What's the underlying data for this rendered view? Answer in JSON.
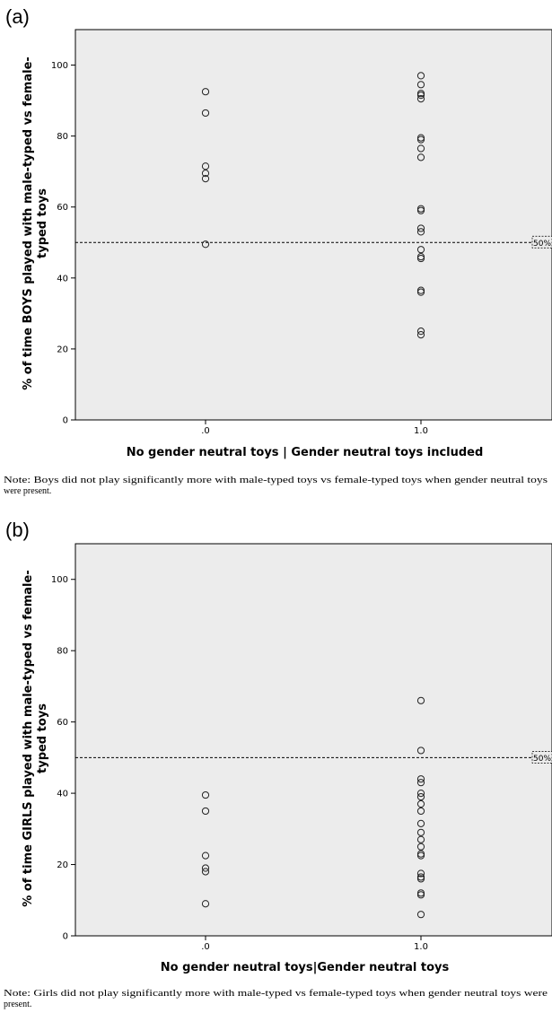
{
  "chart_data": [
    {
      "type": "scatter",
      "panel_label": "(a)",
      "xlabel": "No gender neutral toys | Gender neutral toys included",
      "ylabel_lines": [
        "% of time BOYS played with male-typed vs female-",
        "typed toys"
      ],
      "x_ticks": [
        ".0",
        "1.0"
      ],
      "y_ticks": [
        0,
        20,
        40,
        60,
        80,
        100
      ],
      "ylim": [
        0,
        110
      ],
      "reference_line": {
        "y": 50,
        "label": "50%"
      },
      "series": [
        {
          "x": 0,
          "values": [
            92.5,
            86.5,
            71.5,
            69.5,
            68,
            49.5
          ]
        },
        {
          "x": 1,
          "values": [
            97,
            94.5,
            92,
            91.5,
            90.5,
            79.5,
            79,
            76.5,
            74,
            59.5,
            59,
            54,
            53,
            48,
            46,
            45.5,
            36.5,
            36,
            25,
            24
          ]
        }
      ],
      "grid": false,
      "note_lines": [
        "Note: Boys did not play significantly more with male-typed toys vs female-typed toys when gender neutral toys",
        "were present."
      ]
    },
    {
      "type": "scatter",
      "panel_label": "(b)",
      "xlabel": "No gender neutral toys|Gender neutral toys",
      "ylabel_lines": [
        "% of time GIRLS played with male-typed vs female-",
        "typed toys"
      ],
      "x_ticks": [
        ".0",
        "1.0"
      ],
      "y_ticks": [
        0,
        20,
        40,
        60,
        80,
        100
      ],
      "ylim": [
        0,
        110
      ],
      "reference_line": {
        "y": 50,
        "label": "50%"
      },
      "series": [
        {
          "x": 0,
          "values": [
            39.5,
            35,
            22.5,
            19,
            18,
            9
          ]
        },
        {
          "x": 1,
          "values": [
            66,
            52,
            44,
            43,
            40,
            39,
            37,
            35,
            31.5,
            29,
            27,
            25,
            23,
            22.5,
            17.5,
            16.5,
            16,
            12,
            11.5,
            6
          ]
        }
      ],
      "grid": false,
      "note_lines": [
        "Note: Girls did not play significantly more with male-typed vs female-typed toys when gender neutral toys were",
        "present."
      ]
    }
  ],
  "colors": {
    "plot_background": "#ececec",
    "marker_stroke": "#222222",
    "axis": "#000000"
  }
}
